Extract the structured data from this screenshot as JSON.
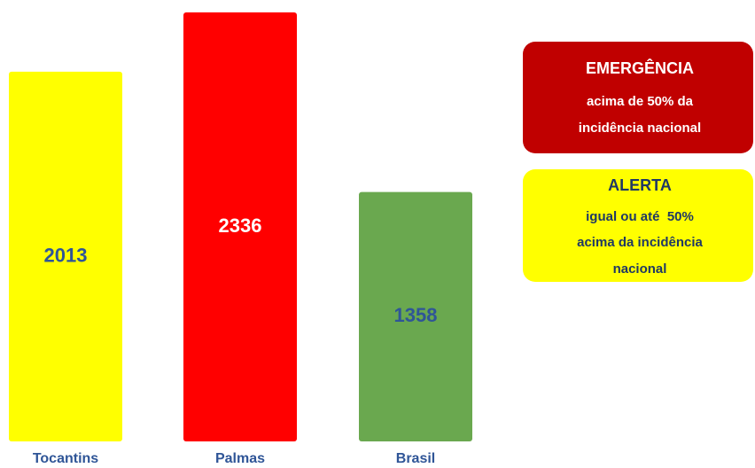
{
  "chart_data": {
    "type": "bar",
    "categories": [
      "Tocantins",
      "Palmas",
      "Brasil"
    ],
    "values": [
      2013,
      2336,
      1358
    ],
    "colors": [
      "#ffff00",
      "#ff0000",
      "#6aa84f"
    ],
    "label_colors": [
      "#2f5597",
      "#ffffff",
      "#2f5597"
    ],
    "legend": [
      {
        "title": "EMERGÊNCIA",
        "lines": [
          "acima de 50% da",
          "incidência nacional"
        ],
        "color": "#c00000",
        "text_color": "#ffffff"
      },
      {
        "title": "ALERTA",
        "lines": [
          "igual ou até  50%",
          "acima da incidência",
          "nacional"
        ],
        "color": "#ffff00",
        "text_color": "#1f3864"
      }
    ]
  }
}
